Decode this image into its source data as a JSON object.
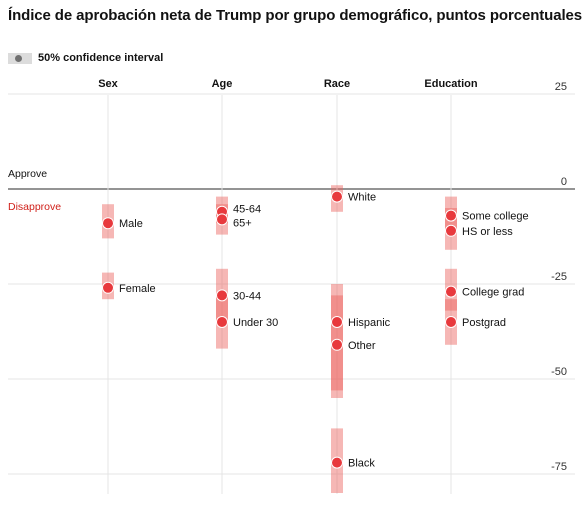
{
  "title": "Índice de aprobación neta de Trump por grupo demográfico, puntos porcentuales",
  "legend": {
    "label": "50% confidence interval"
  },
  "side_labels": {
    "approve": "Approve",
    "disapprove": "Disapprove"
  },
  "colors": {
    "dot": "#e8393d",
    "ci_light": "#f4b4b2",
    "ci_dark": "#ec7470",
    "approve_text": "#121212",
    "disapprove_text": "#d0201a",
    "grid": "#e4e4e4",
    "zero_line": "#555555"
  },
  "chart_data": {
    "type": "scatter",
    "title": "Índice de aprobación neta de Trump por grupo demográfico, puntos porcentuales",
    "ylim": [
      -80,
      28
    ],
    "yticks": [
      25,
      0,
      -25,
      -50,
      -75
    ],
    "yticklabels": [
      "25",
      "0",
      "-25",
      "-50",
      "-75"
    ],
    "grid": true,
    "legend": "top-left",
    "categories": [
      "Sex",
      "Age",
      "Race",
      "Education"
    ],
    "series": [
      {
        "category": "Sex",
        "points": [
          {
            "label": "Male",
            "value": -9,
            "ci": [
              -13,
              -4
            ]
          },
          {
            "label": "Female",
            "value": -26,
            "ci": [
              -29,
              -22
            ]
          }
        ]
      },
      {
        "category": "Age",
        "points": [
          {
            "label": "45-64",
            "value": -6,
            "ci": [
              -9,
              -2
            ]
          },
          {
            "label": "65+",
            "value": -8,
            "ci": [
              -12,
              -4
            ]
          },
          {
            "label": "30-44",
            "value": -28,
            "ci": [
              -35,
              -21
            ]
          },
          {
            "label": "Under 30",
            "value": -35,
            "ci": [
              -42,
              -28
            ]
          }
        ]
      },
      {
        "category": "Race",
        "points": [
          {
            "label": "White",
            "value": -2,
            "ci": [
              -6,
              1
            ]
          },
          {
            "label": "Hispanic",
            "value": -35,
            "ci": [
              -55,
              -25
            ]
          },
          {
            "label": "Other",
            "value": -41,
            "ci": [
              -53,
              -28
            ]
          },
          {
            "label": "Black",
            "value": -72,
            "ci": [
              -80,
              -63
            ]
          }
        ]
      },
      {
        "category": "Education",
        "points": [
          {
            "label": "Some college",
            "value": -7,
            "ci": [
              -11,
              -2
            ]
          },
          {
            "label": "HS or less",
            "value": -11,
            "ci": [
              -16,
              -5
            ]
          },
          {
            "label": "College grad",
            "value": -27,
            "ci": [
              -32,
              -21
            ]
          },
          {
            "label": "Postgrad",
            "value": -35,
            "ci": [
              -41,
              -29
            ]
          }
        ]
      }
    ]
  }
}
